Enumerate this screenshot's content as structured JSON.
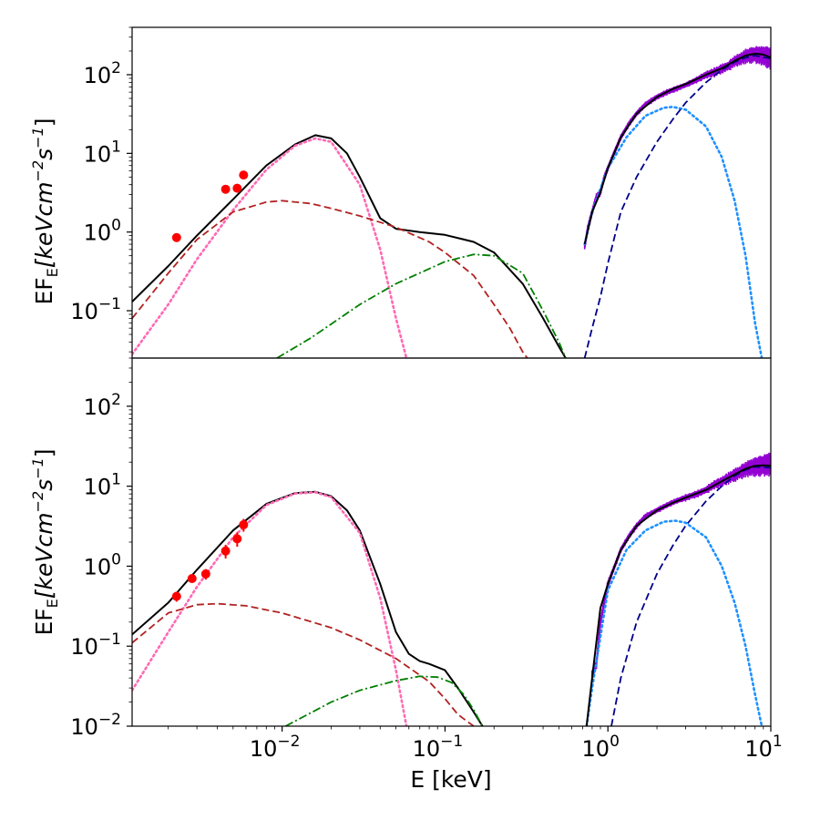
{
  "chart_data": [
    {
      "type": "line",
      "panel": "top",
      "scale": "log-log",
      "ylabel": {
        "base": "EF",
        "sub": "E",
        "unit": "[keVcm",
        "exp1": "−2",
        "s": "s",
        "exp2": "−1",
        "close": "]"
      },
      "xlim": [
        0.0012,
        10
      ],
      "ylim": [
        0.025,
        400
      ],
      "y_ticks": [
        {
          "value": 0.1,
          "mant": "10",
          "exp": "−1"
        },
        {
          "value": 1,
          "mant": "10",
          "exp": "0"
        },
        {
          "value": 10,
          "mant": "10",
          "exp": "1"
        },
        {
          "value": 100,
          "mant": "10",
          "exp": "2"
        }
      ],
      "series": [
        {
          "name": "total model",
          "color": "#000000",
          "style": "solid",
          "x": [
            0.0012,
            0.002,
            0.003,
            0.005,
            0.008,
            0.012,
            0.016,
            0.02,
            0.025,
            0.03,
            0.04,
            0.05,
            0.07,
            0.1,
            0.15,
            0.2,
            0.3,
            0.4,
            0.5,
            0.55
          ],
          "y": [
            0.13,
            0.37,
            0.9,
            2.6,
            7.0,
            13.0,
            17.0,
            15.5,
            10.0,
            5.0,
            1.5,
            1.1,
            1.0,
            0.92,
            0.75,
            0.55,
            0.22,
            0.08,
            0.035,
            0.025
          ]
        },
        {
          "name": "dotted pink component",
          "color": "#ff69b4",
          "style": "dotted",
          "x": [
            0.0012,
            0.002,
            0.003,
            0.005,
            0.008,
            0.012,
            0.016,
            0.02,
            0.03,
            0.04,
            0.05,
            0.058
          ],
          "y": [
            0.028,
            0.12,
            0.45,
            1.9,
            6.2,
            12.5,
            15.5,
            14.0,
            4.0,
            0.6,
            0.08,
            0.025
          ]
        },
        {
          "name": "dashed brown component",
          "color": "#b22222",
          "style": "dashed",
          "x": [
            0.0012,
            0.002,
            0.003,
            0.005,
            0.008,
            0.01,
            0.015,
            0.02,
            0.03,
            0.05,
            0.08,
            0.1,
            0.15,
            0.2,
            0.25,
            0.3,
            0.32
          ],
          "y": [
            0.08,
            0.3,
            0.8,
            1.8,
            2.4,
            2.5,
            2.3,
            2.0,
            1.6,
            1.15,
            0.75,
            0.55,
            0.28,
            0.12,
            0.06,
            0.03,
            0.025
          ]
        },
        {
          "name": "dash-dot green component",
          "color": "#008000",
          "style": "dashdot",
          "x": [
            0.0093,
            0.015,
            0.03,
            0.05,
            0.1,
            0.15,
            0.2,
            0.3,
            0.4,
            0.5,
            0.55
          ],
          "y": [
            0.025,
            0.045,
            0.12,
            0.22,
            0.42,
            0.52,
            0.5,
            0.3,
            0.1,
            0.04,
            0.025
          ]
        },
        {
          "name": "dotted blue component",
          "color": "#1e90ff",
          "style": "dotted",
          "x": [
            0.72,
            0.8,
            1.0,
            1.3,
            1.7,
            2.2,
            2.5,
            3.0,
            4.0,
            5.0,
            6.0,
            7.0,
            8.0,
            8.8
          ],
          "y": [
            0.7,
            1.8,
            6.5,
            16.0,
            30.0,
            38.0,
            39.0,
            36.0,
            22.0,
            9.0,
            2.5,
            0.5,
            0.07,
            0.025
          ]
        },
        {
          "name": "dashed navy component",
          "color": "#00008b",
          "style": "dashed",
          "x": [
            0.72,
            0.8,
            0.9,
            1.0,
            1.2,
            1.5,
            2.0,
            2.5,
            3.0,
            4.0,
            5.0,
            6.0,
            7.0,
            8.0,
            10.0
          ],
          "y": [
            0.025,
            0.06,
            0.15,
            0.4,
            1.8,
            5.0,
            14.0,
            27.0,
            44.0,
            80.0,
            115.0,
            145.0,
            165.0,
            175.0,
            160.0
          ]
        },
        {
          "name": "X-ray total model",
          "color": "#000000",
          "style": "solid",
          "x": [
            0.72,
            0.8,
            0.9,
            1.0,
            1.2,
            1.5,
            2.0,
            2.5,
            3.0,
            4.0,
            5.0,
            6.0,
            7.0,
            8.0,
            9.0,
            10.0
          ],
          "y": [
            0.7,
            1.8,
            3.2,
            6.5,
            16.0,
            32.0,
            52.0,
            66.0,
            76.0,
            100.0,
            120.0,
            150.0,
            175.0,
            185.0,
            180.0,
            165.0
          ]
        }
      ],
      "xray_data": {
        "name": "X-ray data",
        "color": "#9400d3",
        "x": [
          0.72,
          0.75,
          0.8,
          0.85,
          0.9,
          0.95,
          1.0,
          1.1,
          1.2,
          1.35,
          1.5,
          1.7,
          2.0,
          2.3,
          2.6,
          3.0,
          3.5,
          4.0,
          4.5,
          5.0,
          5.5,
          6.0,
          6.5,
          7.0,
          7.5,
          8.0,
          8.5,
          9.0,
          9.5,
          10.0
        ],
        "y": [
          0.65,
          1.1,
          1.8,
          2.8,
          3.2,
          5.0,
          6.5,
          10.5,
          16.0,
          24.0,
          32.0,
          42.0,
          52.0,
          60.0,
          66.0,
          74.0,
          86.0,
          100.0,
          108.0,
          120.0,
          130.0,
          150.0,
          160.0,
          175.0,
          180.0,
          185.0,
          182.0,
          180.0,
          175.0,
          168.0
        ],
        "spread": [
          0.06,
          0.06,
          0.06,
          0.06,
          0.05,
          0.05,
          0.05,
          0.05,
          0.05,
          0.05,
          0.05,
          0.05,
          0.05,
          0.05,
          0.05,
          0.05,
          0.06,
          0.07,
          0.08,
          0.08,
          0.09,
          0.1,
          0.11,
          0.12,
          0.13,
          0.14,
          0.15,
          0.16,
          0.17,
          0.18
        ]
      },
      "points": {
        "name": "UV/optical points",
        "color": "#ff0000",
        "x": [
          0.00225,
          0.0045,
          0.0053,
          0.0058
        ],
        "y": [
          0.85,
          3.5,
          3.6,
          5.3
        ],
        "err": [
          0.0,
          0.0,
          0.0,
          0.0
        ]
      }
    },
    {
      "type": "line",
      "panel": "bottom",
      "scale": "log-log",
      "xlabel": "E [keV]",
      "ylabel": {
        "base": "EF",
        "sub": "E",
        "unit": "[keVcm",
        "exp1": "−2",
        "s": "s",
        "exp2": "−1",
        "close": "]"
      },
      "xlim": [
        0.0012,
        10
      ],
      "ylim": [
        0.01,
        400
      ],
      "x_ticks": [
        {
          "value": 0.01,
          "mant": "10",
          "exp": "−2"
        },
        {
          "value": 0.1,
          "mant": "10",
          "exp": "−1"
        },
        {
          "value": 1,
          "mant": "10",
          "exp": "0"
        },
        {
          "value": 10,
          "mant": "10",
          "exp": "1"
        }
      ],
      "y_ticks": [
        {
          "value": 0.01,
          "mant": "10",
          "exp": "−2"
        },
        {
          "value": 0.1,
          "mant": "10",
          "exp": "−1"
        },
        {
          "value": 1,
          "mant": "10",
          "exp": "0"
        },
        {
          "value": 10,
          "mant": "10",
          "exp": "1"
        },
        {
          "value": 100,
          "mant": "10",
          "exp": "2"
        }
      ],
      "series": [
        {
          "name": "total model",
          "color": "#000000",
          "style": "solid",
          "x": [
            0.0012,
            0.002,
            0.003,
            0.005,
            0.008,
            0.012,
            0.016,
            0.02,
            0.025,
            0.03,
            0.04,
            0.05,
            0.06,
            0.07,
            0.08,
            0.1,
            0.12,
            0.15,
            0.17
          ],
          "y": [
            0.14,
            0.35,
            0.9,
            2.8,
            6.0,
            8.2,
            8.5,
            7.5,
            5.0,
            2.8,
            0.6,
            0.15,
            0.08,
            0.065,
            0.06,
            0.05,
            0.03,
            0.015,
            0.01
          ]
        },
        {
          "name": "dotted pink component",
          "color": "#ff69b4",
          "style": "dotted",
          "x": [
            0.0012,
            0.002,
            0.003,
            0.005,
            0.008,
            0.012,
            0.016,
            0.02,
            0.03,
            0.04,
            0.05,
            0.058
          ],
          "y": [
            0.028,
            0.15,
            0.55,
            2.3,
            5.8,
            8.1,
            8.4,
            7.3,
            2.6,
            0.4,
            0.05,
            0.01
          ]
        },
        {
          "name": "dashed brown component",
          "color": "#b22222",
          "style": "dashed",
          "x": [
            0.0012,
            0.002,
            0.003,
            0.004,
            0.006,
            0.01,
            0.02,
            0.03,
            0.05,
            0.08,
            0.1,
            0.12,
            0.15
          ],
          "y": [
            0.11,
            0.26,
            0.33,
            0.34,
            0.32,
            0.26,
            0.17,
            0.12,
            0.07,
            0.036,
            0.022,
            0.014,
            0.01
          ]
        },
        {
          "name": "dash-dot green component",
          "color": "#008000",
          "style": "dashdot",
          "x": [
            0.0105,
            0.02,
            0.03,
            0.05,
            0.07,
            0.09,
            0.11,
            0.13,
            0.15,
            0.17
          ],
          "y": [
            0.01,
            0.02,
            0.028,
            0.037,
            0.042,
            0.041,
            0.035,
            0.025,
            0.016,
            0.01
          ]
        },
        {
          "name": "dotted blue component",
          "color": "#1e90ff",
          "style": "dotted",
          "x": [
            0.74,
            0.8,
            1.0,
            1.3,
            1.7,
            2.2,
            2.6,
            3.0,
            4.0,
            5.0,
            6.0,
            7.0,
            8.0,
            8.8
          ],
          "y": [
            0.01,
            0.03,
            0.5,
            1.6,
            2.8,
            3.6,
            3.7,
            3.5,
            2.3,
            1.0,
            0.35,
            0.1,
            0.025,
            0.01
          ]
        },
        {
          "name": "dashed navy component",
          "color": "#00008b",
          "style": "dashed",
          "x": [
            1.05,
            1.2,
            1.5,
            2.0,
            2.5,
            3.0,
            4.0,
            5.0,
            6.0,
            7.0,
            8.0,
            10.0
          ],
          "y": [
            0.01,
            0.04,
            0.2,
            0.8,
            1.8,
            3.2,
            6.5,
            10.0,
            13.5,
            16.0,
            17.5,
            17.0
          ]
        },
        {
          "name": "X-ray total model",
          "color": "#000000",
          "style": "solid",
          "x": [
            0.74,
            0.8,
            0.9,
            1.0,
            1.2,
            1.5,
            2.0,
            2.5,
            3.0,
            4.0,
            5.0,
            6.0,
            7.0,
            8.0,
            9.0,
            10.0
          ],
          "y": [
            0.01,
            0.04,
            0.3,
            0.6,
            1.6,
            3.2,
            5.0,
            6.2,
            7.2,
            9.0,
            11.5,
            14.0,
            16.5,
            18.0,
            18.2,
            18.0
          ]
        }
      ],
      "xray_data": {
        "name": "X-ray data",
        "color": "#9400d3",
        "x": [
          0.8,
          0.85,
          0.9,
          0.95,
          1.0,
          1.1,
          1.2,
          1.35,
          1.5,
          1.7,
          2.0,
          2.3,
          2.6,
          3.0,
          3.5,
          4.0,
          4.5,
          5.0,
          5.5,
          6.0,
          6.5,
          7.0,
          7.5,
          8.0,
          8.5,
          9.0,
          9.5,
          10.0
        ],
        "y": [
          0.045,
          0.06,
          0.2,
          0.35,
          0.6,
          1.0,
          1.6,
          2.4,
          3.2,
          4.2,
          5.0,
          5.8,
          6.5,
          7.2,
          8.0,
          9.0,
          10.5,
          11.5,
          12.8,
          14.0,
          15.2,
          16.5,
          17.5,
          18.0,
          18.5,
          19.0,
          19.5,
          20.0
        ],
        "spread": [
          0.08,
          0.08,
          0.07,
          0.07,
          0.06,
          0.05,
          0.05,
          0.05,
          0.05,
          0.05,
          0.05,
          0.05,
          0.05,
          0.06,
          0.06,
          0.07,
          0.08,
          0.09,
          0.1,
          0.11,
          0.12,
          0.13,
          0.14,
          0.15,
          0.16,
          0.17,
          0.18,
          0.2
        ]
      },
      "points": {
        "name": "UV/optical points",
        "color": "#ff0000",
        "x": [
          0.00225,
          0.0028,
          0.0034,
          0.0045,
          0.0053,
          0.0058
        ],
        "y": [
          0.42,
          0.7,
          0.8,
          1.55,
          2.2,
          3.3
        ],
        "err": [
          0.06,
          0.08,
          0.12,
          0.3,
          0.45,
          0.6
        ]
      }
    }
  ]
}
